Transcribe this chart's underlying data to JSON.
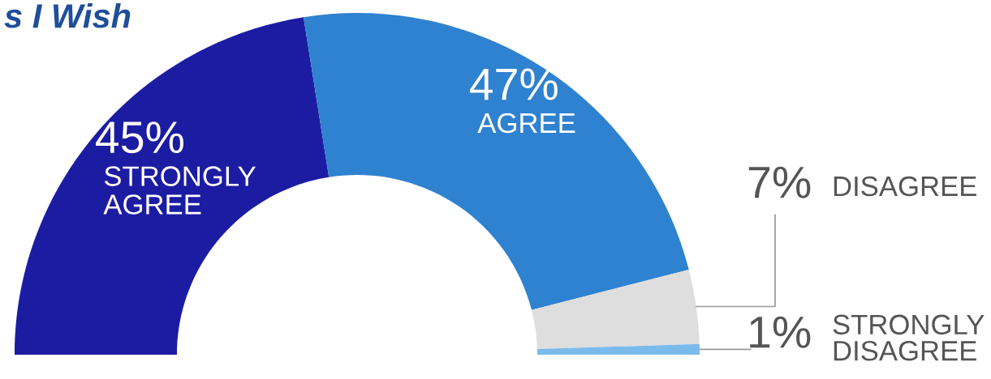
{
  "chart_data": {
    "type": "donut",
    "title": "s I Wish",
    "categories": [
      "STRONGLY AGREE",
      "AGREE",
      "DISAGREE",
      "STRONGLY DISAGREE"
    ],
    "values": [
      45,
      47,
      7,
      1
    ],
    "colors": [
      "#1c1ca3",
      "#2f82cf",
      "#dedede",
      "#7bbbec"
    ],
    "value_labels": [
      "45%",
      "47%",
      "7%",
      "1%"
    ]
  }
}
